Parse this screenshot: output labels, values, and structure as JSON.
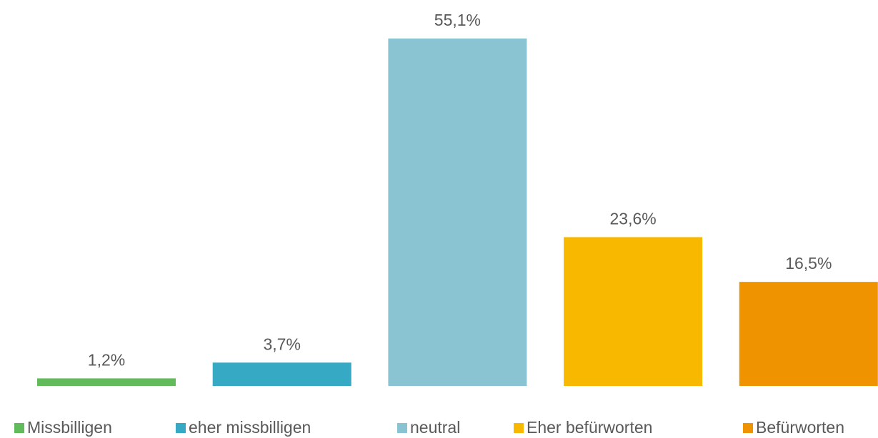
{
  "chart_data": {
    "type": "bar",
    "series": [
      {
        "name": "Missbilligen",
        "color": "#62bb5a",
        "values": [
          1.2
        ],
        "value_labels": [
          "1,2%"
        ]
      },
      {
        "name": "eher missbilligen",
        "color": "#36a9c4",
        "values": [
          3.7
        ],
        "value_labels": [
          "3,7%"
        ]
      },
      {
        "name": "neutral",
        "color": "#8ac3d1",
        "values": [
          55.1
        ],
        "value_labels": [
          "55,1%"
        ]
      },
      {
        "name": "Eher befürworten",
        "color": "#f9b800",
        "values": [
          23.6
        ],
        "value_labels": [
          "23,6%"
        ]
      },
      {
        "name": "Befürworten",
        "color": "#f09300",
        "values": [
          16.5
        ],
        "value_labels": [
          "16,5%"
        ]
      }
    ],
    "legend": "bottom"
  }
}
